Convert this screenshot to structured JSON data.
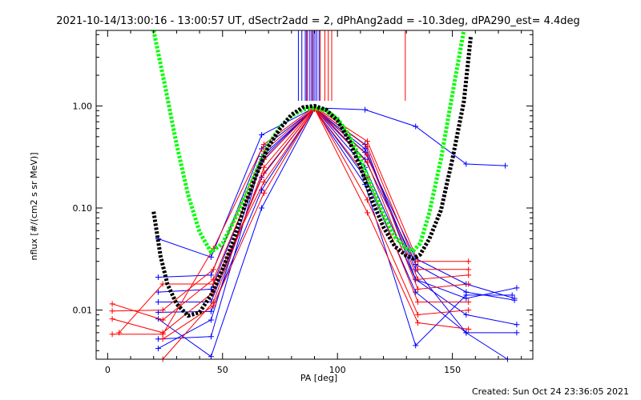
{
  "chart_data": {
    "type": "line",
    "title": "2021-10-14/13:00:16 - 13:00:57 UT, dSectr2add = 2, dPhAng2add = -10.3deg, dPA290_est=  4.4deg",
    "xlabel": "PA [deg]",
    "ylabel": "nflux [#/(cm2 s sr MeV)]",
    "footer": "Created: Sun Oct 24 23:36:05 2021",
    "xlim": [
      -5,
      185
    ],
    "ylim": [
      0.0033,
      5.5
    ],
    "yscale": "log",
    "xticks": [
      0,
      50,
      100,
      150
    ],
    "xtick_labels": [
      "0",
      "50",
      "100",
      "150"
    ],
    "yticks": [
      0.01,
      0.1,
      1.0
    ],
    "ytick_labels": [
      "0.01",
      "0.10",
      "1.00"
    ],
    "grid": false,
    "colors": {
      "blue": "#0000ff",
      "red": "#ff0000",
      "green": "#00ff00",
      "black": "#000000"
    },
    "vlines": [
      {
        "color": "#0000ff",
        "x": [
          83,
          84.5,
          86,
          87,
          88,
          88.8,
          89.5,
          90.2,
          91,
          92
        ]
      },
      {
        "color": "#ff0000",
        "x": [
          86.5,
          89,
          92.5,
          94.5,
          96,
          97.5,
          129.5
        ]
      }
    ],
    "reference_curves": [
      {
        "color": "#00ff00",
        "points": [
          [
            20,
            6
          ],
          [
            25,
            1.55
          ],
          [
            30,
            0.42
          ],
          [
            35,
            0.135
          ],
          [
            40,
            0.058
          ],
          [
            45,
            0.037
          ],
          [
            50,
            0.045
          ],
          [
            55,
            0.075
          ],
          [
            60,
            0.13
          ],
          [
            65,
            0.24
          ],
          [
            70,
            0.42
          ],
          [
            75,
            0.62
          ],
          [
            80,
            0.8
          ],
          [
            85,
            0.92
          ],
          [
            88,
            0.95
          ],
          [
            90,
            0.95
          ],
          [
            95,
            0.9
          ],
          [
            100,
            0.75
          ],
          [
            105,
            0.52
          ],
          [
            110,
            0.3
          ],
          [
            115,
            0.16
          ],
          [
            120,
            0.085
          ],
          [
            125,
            0.052
          ],
          [
            130,
            0.04
          ],
          [
            133,
            0.038
          ],
          [
            136,
            0.045
          ],
          [
            140,
            0.09
          ],
          [
            145,
            0.3
          ],
          [
            150,
            1.3
          ],
          [
            155,
            6
          ]
        ]
      },
      {
        "color": "#000000",
        "points": [
          [
            20,
            0.092
          ],
          [
            23,
            0.034
          ],
          [
            26,
            0.018
          ],
          [
            30,
            0.0115
          ],
          [
            35,
            0.0088
          ],
          [
            40,
            0.0095
          ],
          [
            45,
            0.014
          ],
          [
            50,
            0.025
          ],
          [
            55,
            0.05
          ],
          [
            60,
            0.11
          ],
          [
            65,
            0.22
          ],
          [
            70,
            0.4
          ],
          [
            75,
            0.6
          ],
          [
            80,
            0.82
          ],
          [
            85,
            0.97
          ],
          [
            90,
            1.0
          ],
          [
            95,
            0.92
          ],
          [
            100,
            0.72
          ],
          [
            105,
            0.46
          ],
          [
            110,
            0.25
          ],
          [
            115,
            0.12
          ],
          [
            120,
            0.065
          ],
          [
            125,
            0.042
          ],
          [
            130,
            0.034
          ],
          [
            133,
            0.032
          ],
          [
            136,
            0.035
          ],
          [
            140,
            0.05
          ],
          [
            145,
            0.095
          ],
          [
            150,
            0.3
          ],
          [
            155,
            1.1
          ],
          [
            158,
            4.8
          ]
        ]
      }
    ],
    "series": [
      {
        "color": "#0000ff",
        "points": [
          [
            22,
            0.05
          ],
          [
            45,
            0.033
          ],
          [
            67,
            0.52
          ],
          [
            90,
            0.96
          ],
          [
            112,
            0.92
          ],
          [
            134,
            0.63
          ],
          [
            156,
            0.27
          ],
          [
            173,
            0.26
          ]
        ]
      },
      {
        "color": "#0000ff",
        "points": [
          [
            22,
            0.021
          ],
          [
            45,
            0.022
          ],
          [
            67,
            0.38
          ],
          [
            90,
            0.95
          ],
          [
            112,
            0.35
          ],
          [
            134,
            0.032
          ],
          [
            156,
            0.018
          ],
          [
            177,
            0.013
          ]
        ]
      },
      {
        "color": "#0000ff",
        "points": [
          [
            22,
            0.015
          ],
          [
            45,
            0.016
          ],
          [
            67,
            0.28
          ],
          [
            90,
            0.97
          ],
          [
            112,
            0.3
          ],
          [
            134,
            0.028
          ],
          [
            156,
            0.015
          ],
          [
            177,
            0.0125
          ]
        ]
      },
      {
        "color": "#0000ff",
        "points": [
          [
            22,
            0.012
          ],
          [
            45,
            0.012
          ],
          [
            67,
            0.2
          ],
          [
            90,
            0.95
          ],
          [
            112,
            0.25
          ],
          [
            134,
            0.02
          ],
          [
            156,
            0.013
          ],
          [
            178,
            0.0165
          ]
        ]
      },
      {
        "color": "#0000ff",
        "points": [
          [
            22,
            0.0095
          ],
          [
            45,
            0.0097
          ],
          [
            67,
            0.15
          ],
          [
            90,
            0.94
          ],
          [
            112,
            0.2
          ],
          [
            134,
            0.015
          ],
          [
            156,
            0.006
          ],
          [
            178,
            0.006
          ]
        ]
      },
      {
        "color": "#0000ff",
        "points": [
          [
            22,
            0.0082
          ],
          [
            45,
            0.0035
          ],
          [
            67,
            0.1
          ],
          [
            90,
            0.93
          ],
          [
            112,
            0.17
          ],
          [
            134,
            0.0045
          ],
          [
            156,
            0.014
          ],
          [
            176,
            0.014
          ]
        ]
      },
      {
        "color": "#0000ff",
        "points": [
          [
            22,
            0.0052
          ],
          [
            45,
            0.0055
          ],
          [
            67,
            0.3
          ],
          [
            90,
            0.96
          ],
          [
            112,
            0.42
          ],
          [
            134,
            0.02
          ],
          [
            156,
            0.009
          ],
          [
            178,
            0.0072
          ]
        ]
      },
      {
        "color": "#0000ff",
        "points": [
          [
            22,
            0.0042
          ],
          [
            45,
            0.008
          ],
          [
            67,
            0.32
          ],
          [
            90,
            0.95
          ],
          [
            112,
            0.38
          ],
          [
            134,
            0.025
          ],
          [
            156,
            0.006
          ],
          [
            174,
            0.003
          ]
        ]
      },
      {
        "color": "#ff0000",
        "points": [
          [
            2,
            0.0058
          ],
          [
            24,
            0.0058
          ],
          [
            46,
            0.04
          ],
          [
            68,
            0.42
          ],
          [
            90,
            0.98
          ],
          [
            113,
            0.45
          ],
          [
            135,
            0.03
          ],
          [
            157,
            0.03
          ]
        ]
      },
      {
        "color": "#ff0000",
        "points": [
          [
            2,
            0.0098
          ],
          [
            24,
            0.01
          ],
          [
            46,
            0.025
          ],
          [
            68,
            0.36
          ],
          [
            90,
            0.96
          ],
          [
            113,
            0.4
          ],
          [
            135,
            0.025
          ],
          [
            157,
            0.025
          ]
        ]
      },
      {
        "color": "#ff0000",
        "points": [
          [
            2,
            0.0115
          ],
          [
            24,
            0.008
          ],
          [
            46,
            0.02
          ],
          [
            68,
            0.3
          ],
          [
            90,
            0.95
          ],
          [
            113,
            0.33
          ],
          [
            135,
            0.02
          ],
          [
            157,
            0.022
          ]
        ]
      },
      {
        "color": "#ff0000",
        "points": [
          [
            2,
            0.0082
          ],
          [
            24,
            0.006
          ],
          [
            46,
            0.015
          ],
          [
            68,
            0.22
          ],
          [
            90,
            0.94
          ],
          [
            113,
            0.28
          ],
          [
            135,
            0.016
          ],
          [
            157,
            0.018
          ]
        ]
      },
      {
        "color": "#ff0000",
        "points": [
          [
            5,
            0.006
          ],
          [
            24,
            0.018
          ],
          [
            46,
            0.018
          ],
          [
            68,
            0.18
          ],
          [
            90,
            0.93
          ],
          [
            113,
            0.2
          ],
          [
            135,
            0.012
          ],
          [
            157,
            0.012
          ]
        ]
      },
      {
        "color": "#ff0000",
        "points": [
          [
            24,
            0.0033
          ],
          [
            46,
            0.012
          ],
          [
            68,
            0.25
          ],
          [
            90,
            0.97
          ],
          [
            113,
            0.12
          ],
          [
            135,
            0.009
          ],
          [
            157,
            0.01
          ]
        ]
      },
      {
        "color": "#ff0000",
        "points": [
          [
            24,
            0.0052
          ],
          [
            46,
            0.011
          ],
          [
            68,
            0.14
          ],
          [
            90,
            0.95
          ],
          [
            113,
            0.09
          ],
          [
            135,
            0.0075
          ],
          [
            157,
            0.0065
          ]
        ]
      }
    ]
  }
}
